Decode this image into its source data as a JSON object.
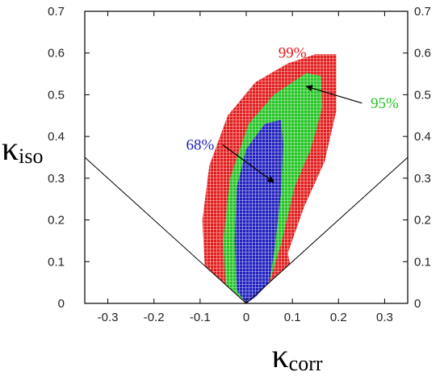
{
  "chart_data": {
    "type": "heatmap",
    "title": "",
    "xlabel": {
      "symbol": "κ",
      "subscript": "corr"
    },
    "ylabel": {
      "symbol": "κ",
      "subscript": "iso"
    },
    "xlim": [
      -0.35,
      0.35
    ],
    "ylim": [
      0,
      0.7
    ],
    "x_ticks": [
      "-0.3",
      "-0.2",
      "-0.1",
      "0",
      "0.1",
      "0.2",
      "0.3"
    ],
    "y_ticks": [
      "0",
      "0.1",
      "0.2",
      "0.3",
      "0.4",
      "0.5",
      "0.6",
      "0.7"
    ],
    "y_ticks_right": [
      "0",
      "0.1",
      "0.2",
      "0.3",
      "0.4",
      "0.5",
      "0.6",
      "0.7"
    ],
    "grid": false,
    "boundary_lines": [
      {
        "x": [
          0,
          -0.35
        ],
        "y": [
          0,
          0.35
        ]
      },
      {
        "x": [
          0,
          0.35
        ],
        "y": [
          0,
          0.35
        ]
      }
    ],
    "regions": [
      {
        "name": "99%",
        "color": "#e31b1b",
        "points": [
          [
            0,
            0
          ],
          [
            -0.09,
            0.09
          ],
          [
            -0.095,
            0.2
          ],
          [
            -0.08,
            0.33
          ],
          [
            -0.04,
            0.45
          ],
          [
            0.02,
            0.53
          ],
          [
            0.09,
            0.575
          ],
          [
            0.15,
            0.597
          ],
          [
            0.195,
            0.597
          ],
          [
            0.195,
            0.46
          ],
          [
            0.17,
            0.34
          ],
          [
            0.125,
            0.23
          ],
          [
            0.09,
            0.12
          ],
          [
            0.095,
            0.095
          ]
        ]
      },
      {
        "name": "95%",
        "color": "#22c422",
        "points": [
          [
            0,
            0
          ],
          [
            -0.045,
            0.045
          ],
          [
            -0.05,
            0.15
          ],
          [
            -0.035,
            0.3
          ],
          [
            0.005,
            0.43
          ],
          [
            0.06,
            0.5
          ],
          [
            0.13,
            0.552
          ],
          [
            0.162,
            0.545
          ],
          [
            0.165,
            0.47
          ],
          [
            0.14,
            0.37
          ],
          [
            0.105,
            0.28
          ],
          [
            0.075,
            0.14
          ],
          [
            0.05,
            0.05
          ]
        ]
      },
      {
        "name": "68%",
        "color": "#1f1fbf",
        "points": [
          [
            0,
            0
          ],
          [
            -0.02,
            0.03
          ],
          [
            -0.025,
            0.15
          ],
          [
            -0.02,
            0.28
          ],
          [
            0,
            0.37
          ],
          [
            0.04,
            0.43
          ],
          [
            0.075,
            0.44
          ],
          [
            0.08,
            0.38
          ],
          [
            0.075,
            0.26
          ],
          [
            0.06,
            0.12
          ],
          [
            0.05,
            0.05
          ],
          [
            0.02,
            0.015
          ]
        ]
      }
    ],
    "annotations": [
      {
        "text": "99%",
        "color": "#e31b1b",
        "x": 0.1,
        "y": 0.6
      },
      {
        "text": "95%",
        "color": "#22c422",
        "x": 0.3,
        "y": 0.48,
        "arrow_to": [
          0.13,
          0.52
        ]
      },
      {
        "text": "68%",
        "color": "#1f1fbf",
        "x": -0.1,
        "y": 0.38,
        "arrow_to": [
          0.06,
          0.29
        ]
      }
    ]
  }
}
